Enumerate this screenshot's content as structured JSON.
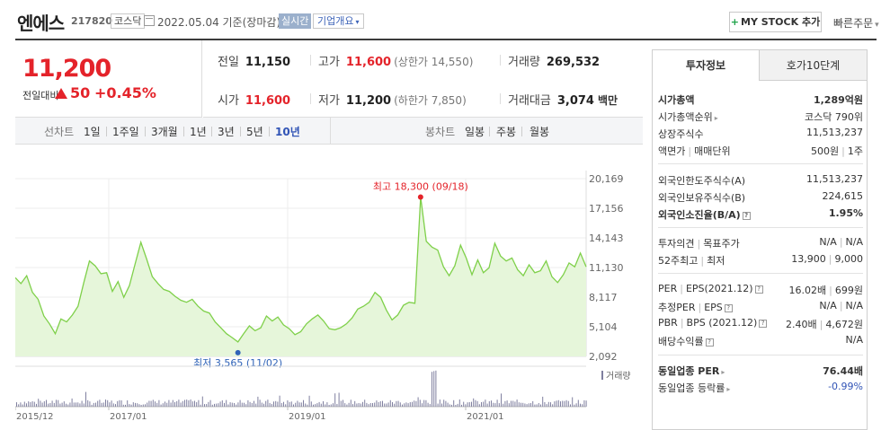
{
  "header": {
    "name": "엔에스",
    "code": "217820",
    "market": "코스닥",
    "date": "2022.05.04 기준(장마감)",
    "realtime": "실시간",
    "overview": "기업개요",
    "mystock": "MY STOCK 추가",
    "quickorder": "빠른주문"
  },
  "price": {
    "current": "11,200",
    "change_label": "전일대비",
    "change": "50",
    "pct": "+0.45%"
  },
  "stats": {
    "prev_k": "전일",
    "prev_v": "11,150",
    "high_k": "고가",
    "high_v": "11,600",
    "high_sub": "(상한가 14,550)",
    "vol_k": "거래량",
    "vol_v": "269,532",
    "open_k": "시가",
    "open_v": "11,600",
    "low_k": "저가",
    "low_v": "11,200",
    "low_sub": "(하한가 7,850)",
    "amt_k": "거래대금",
    "amt_v": "3,074",
    "amt_unit": "백만"
  },
  "tabs": {
    "line_label": "선차트",
    "periods": [
      "1일",
      "1주일",
      "3개월",
      "1년",
      "3년",
      "5년",
      "10년"
    ],
    "active": "10년",
    "candle_label": "봉차트",
    "candles": [
      "일봉",
      "주봉",
      "월봉"
    ]
  },
  "chart_data": {
    "type": "area",
    "y_ticks": [
      "20,169",
      "17,156",
      "14,143",
      "11,130",
      "8,117",
      "5,104",
      "2,092"
    ],
    "ylim": [
      2092,
      20169
    ],
    "x_ticks": [
      "2015/12",
      "2017/01",
      "2019/01",
      "2021/01"
    ],
    "high_label": "최고 18,300 (09/18)",
    "low_label": "최저 3,565 (11/02)",
    "high": 18300,
    "low": 3565,
    "volume_label": "거래량",
    "colors": {
      "line": "#7fd04a",
      "fill": "#e6f6da",
      "high": "#e4232a",
      "low": "#2f63b8",
      "volume": "#7f7f9f"
    },
    "series": [
      10100,
      9500,
      10300,
      8600,
      7900,
      6200,
      5400,
      4400,
      5900,
      5600,
      6300,
      7200,
      9600,
      11800,
      11300,
      10500,
      10600,
      8700,
      9700,
      8100,
      9300,
      11500,
      13700,
      12000,
      10200,
      9500,
      8900,
      8700,
      8200,
      7800,
      7600,
      7900,
      7200,
      6700,
      6500,
      5600,
      5000,
      4400,
      4000,
      3565,
      4400,
      5200,
      4700,
      5000,
      6200,
      5700,
      6100,
      5300,
      4900,
      4300,
      4600,
      5400,
      5900,
      6300,
      5700,
      4900,
      4800,
      5000,
      5400,
      6000,
      6900,
      7200,
      7600,
      8600,
      8100,
      6800,
      5800,
      6300,
      7300,
      7600,
      7500,
      18300,
      13800,
      13200,
      12900,
      11200,
      10300,
      11300,
      13400,
      12100,
      10400,
      11900,
      10600,
      11100,
      13600,
      12300,
      11800,
      12100,
      10900,
      10300,
      11400,
      10600,
      10800,
      11800,
      10200,
      9600,
      10400,
      11600,
      11200,
      12600,
      11200
    ]
  },
  "panel": {
    "tab1": "투자정보",
    "tab2": "호가10단계",
    "r1": {
      "l": "시가총액",
      "r": "1,289억원"
    },
    "r2": {
      "l": "시가총액순위",
      "r": "코스닥 790위"
    },
    "r3": {
      "l": "상장주식수",
      "r": "11,513,237"
    },
    "r4": {
      "l": "액면가",
      "l2": "매매단위",
      "r": "500원",
      "r2": "1주"
    },
    "r5": {
      "l": "외국인한도주식수(A)",
      "r": "11,513,237"
    },
    "r6": {
      "l": "외국인보유주식수(B)",
      "r": "224,615"
    },
    "r7": {
      "l": "외국인소진율(B/A)",
      "r": "1.95%"
    },
    "r8": {
      "l": "투자의견",
      "l2": "목표주가",
      "r": "N/A",
      "r2": "N/A"
    },
    "r9": {
      "l": "52주최고",
      "l2": "최저",
      "r": "13,900",
      "r2": "9,000"
    },
    "r10": {
      "l": "PER",
      "l2": "EPS(2021.12)",
      "r": "16.02배",
      "r2": "699원"
    },
    "r11": {
      "l": "추정PER",
      "l2": "EPS",
      "r": "N/A",
      "r2": "N/A"
    },
    "r12": {
      "l": "PBR",
      "l2": "BPS (2021.12)",
      "r": "2.40배",
      "r2": "4,672원"
    },
    "r13": {
      "l": "배당수익률",
      "r": "N/A"
    },
    "r14": {
      "l": "동일업종 PER",
      "r": "76.44배"
    },
    "r15": {
      "l": "동일업종 등락률",
      "r": "-0.99%"
    }
  }
}
